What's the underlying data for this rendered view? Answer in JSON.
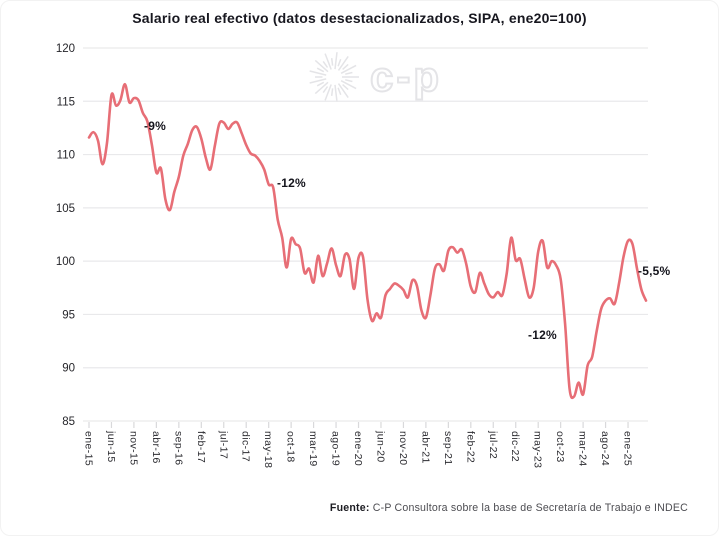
{
  "title": "Salario real efectivo (datos desestacionalizados, SIPA, ene20=100)",
  "watermark": {
    "icon": "sunburst-logo",
    "text": "c-p"
  },
  "footer": {
    "bold": "Fuente:",
    "text": "C-P Consultora sobre la base de Secretaría de Trabajo e INDEC"
  },
  "chart_data": {
    "type": "line",
    "title": "Salario real efectivo (datos desestacionalizados, SIPA, ene20=100)",
    "xlabel": "",
    "ylabel": "",
    "ylim": [
      85,
      120
    ],
    "y_ticks": [
      120,
      115,
      110,
      105,
      100,
      95,
      90,
      85
    ],
    "grid": "horizontal",
    "legend": "none",
    "x_unit": "month",
    "x_first": "ene-15",
    "x_last": "may-25",
    "months_per_tick": 5,
    "x_tick_labels": [
      "ene-15",
      "jun-15",
      "nov-15",
      "abr-16",
      "sep-16",
      "feb-17",
      "jul-17",
      "dic-17",
      "may-18",
      "oct-18",
      "mar-19",
      "ago-19",
      "ene-20",
      "jun-20",
      "nov-20",
      "abr-21",
      "sep-21",
      "feb-22",
      "jul-22",
      "dic-22",
      "may-23",
      "oct-23",
      "mar-24",
      "ago-24",
      "ene-25"
    ],
    "series": [
      {
        "name": "Salario real efectivo (SIPA, desestacionalizado, ene20=100)",
        "color": "#e76e76",
        "values": [
          111.6,
          112.1,
          111.3,
          109.1,
          111.1,
          115.6,
          114.6,
          115.1,
          116.6,
          114.9,
          115.3,
          115.1,
          113.9,
          113.1,
          110.9,
          108.3,
          108.7,
          105.8,
          104.8,
          106.5,
          107.9,
          109.9,
          111.0,
          112.3,
          112.6,
          111.5,
          109.7,
          108.6,
          110.8,
          112.9,
          113.0,
          112.4,
          112.9,
          113.0,
          112.0,
          110.9,
          110.1,
          109.9,
          109.4,
          108.6,
          107.2,
          106.9,
          103.9,
          102.2,
          99.4,
          102.1,
          101.6,
          101.2,
          98.9,
          99.3,
          98.0,
          100.5,
          98.6,
          99.8,
          101.2,
          99.6,
          98.6,
          100.6,
          100.2,
          97.4,
          100.3,
          100.4,
          96.4,
          94.4,
          95.1,
          94.7,
          96.8,
          97.4,
          97.9,
          97.7,
          97.3,
          96.6,
          98.2,
          97.7,
          95.4,
          94.7,
          96.8,
          99.3,
          99.7,
          99.1,
          101.0,
          101.3,
          100.8,
          101.1,
          99.7,
          97.6,
          97.1,
          98.9,
          97.9,
          96.9,
          96.6,
          97.1,
          96.8,
          98.9,
          102.2,
          100.1,
          100.2,
          98.3,
          96.6,
          97.5,
          100.9,
          101.9,
          99.4,
          100.0,
          99.6,
          98.3,
          94.1,
          88.0,
          87.3,
          88.6,
          87.5,
          90.2,
          91.0,
          93.4,
          95.5,
          96.3,
          96.5,
          96.0,
          97.9,
          100.4,
          101.9,
          101.6,
          99.3,
          97.3,
          96.3
        ]
      }
    ],
    "annotations": [
      {
        "label": "-9%",
        "m": 12.2,
        "v": 113.3
      },
      {
        "label": "-12%",
        "m": 41.9,
        "v": 108.0
      },
      {
        "label": "-12%",
        "m": 97.8,
        "v": 93.7
      },
      {
        "label": "-5,5%",
        "m": 122.3,
        "v": 99.7
      }
    ],
    "colors": {
      "line": "#e76e76",
      "grid": "#e9e9eb",
      "tick_text": "#2b2b30",
      "title_text": "#17171f"
    }
  }
}
